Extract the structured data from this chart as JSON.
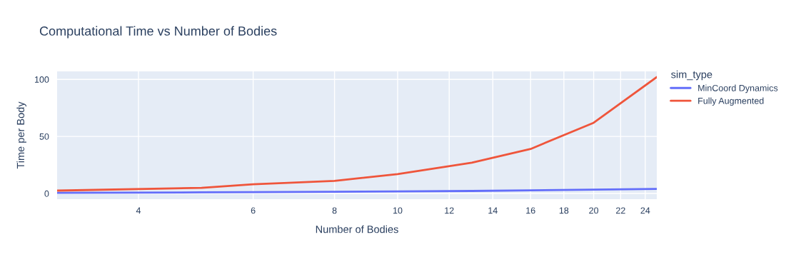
{
  "chart_data": {
    "type": "line",
    "title": "Computational Time vs Number of Bodies",
    "xlabel": "Number of Bodies",
    "ylabel": "Time per Body",
    "legend_title": "sim_type",
    "x": [
      3,
      5,
      6,
      8,
      10,
      13,
      16,
      20,
      25
    ],
    "series": [
      {
        "name": "MinCoord Dynamics",
        "color": "#636efa",
        "values": [
          0.5,
          1,
          1.2,
          1.5,
          1.8,
          2.2,
          2.8,
          3.4,
          4
        ]
      },
      {
        "name": "Fully Augmented",
        "color": "#ef553b",
        "values": [
          2.5,
          5,
          8,
          11,
          17,
          27,
          39,
          62,
          102
        ]
      }
    ],
    "log": "x",
    "xlim": [
      3,
      25
    ],
    "xticks": [
      4,
      6,
      8,
      10,
      12,
      14,
      16,
      18,
      20,
      22,
      24
    ],
    "ylim": [
      -5,
      107
    ],
    "yticks": [
      0,
      50,
      100
    ],
    "grid": true,
    "legend": "right",
    "line_style": "solid"
  }
}
